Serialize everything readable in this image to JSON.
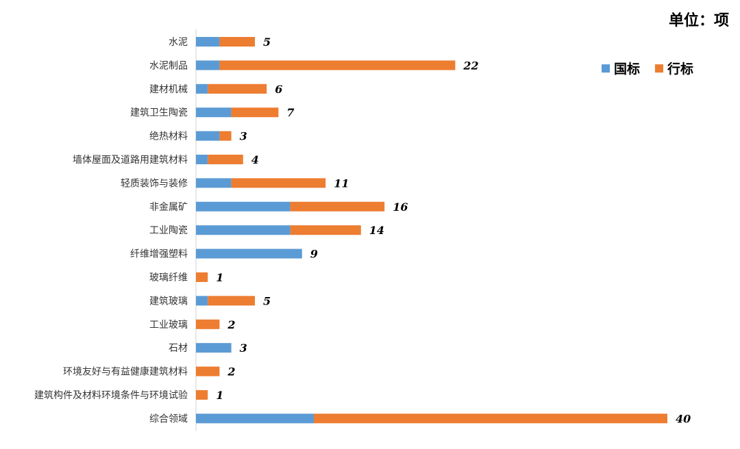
{
  "chart_data": {
    "type": "bar",
    "orientation": "horizontal",
    "stacked": true,
    "unit": "单位：项",
    "categories": [
      "水泥",
      "水泥制品",
      "建材机械",
      "建筑卫生陶瓷",
      "绝热材料",
      "墙体屋面及道路用建筑材料",
      "轻质装饰与装修",
      "非金属矿",
      "工业陶瓷",
      "纤维增强塑料",
      "玻璃纤维",
      "建筑玻璃",
      "工业玻璃",
      "石材",
      "环境友好与有益健康建筑材料",
      "建筑构件及材料环境条件与环境试验",
      "综合领域"
    ],
    "series": [
      {
        "name": "国标",
        "color": "#5B9BD5",
        "values": [
          2,
          2,
          1,
          3,
          2,
          1,
          3,
          8,
          8,
          9,
          0,
          1,
          0,
          3,
          0,
          0,
          10
        ]
      },
      {
        "name": "行标",
        "color": "#ED7D31",
        "values": [
          3,
          20,
          5,
          4,
          1,
          3,
          8,
          8,
          6,
          0,
          1,
          4,
          2,
          0,
          2,
          1,
          30
        ]
      }
    ],
    "totals": [
      "5",
      "22",
      "6",
      "7",
      "3",
      "4",
      "11",
      "16",
      "14",
      "9",
      "1",
      "5",
      "2",
      "3",
      "2",
      "1",
      "40"
    ],
    "xlim": [
      0,
      40
    ],
    "legend_position": "top-right",
    "grid": false
  }
}
